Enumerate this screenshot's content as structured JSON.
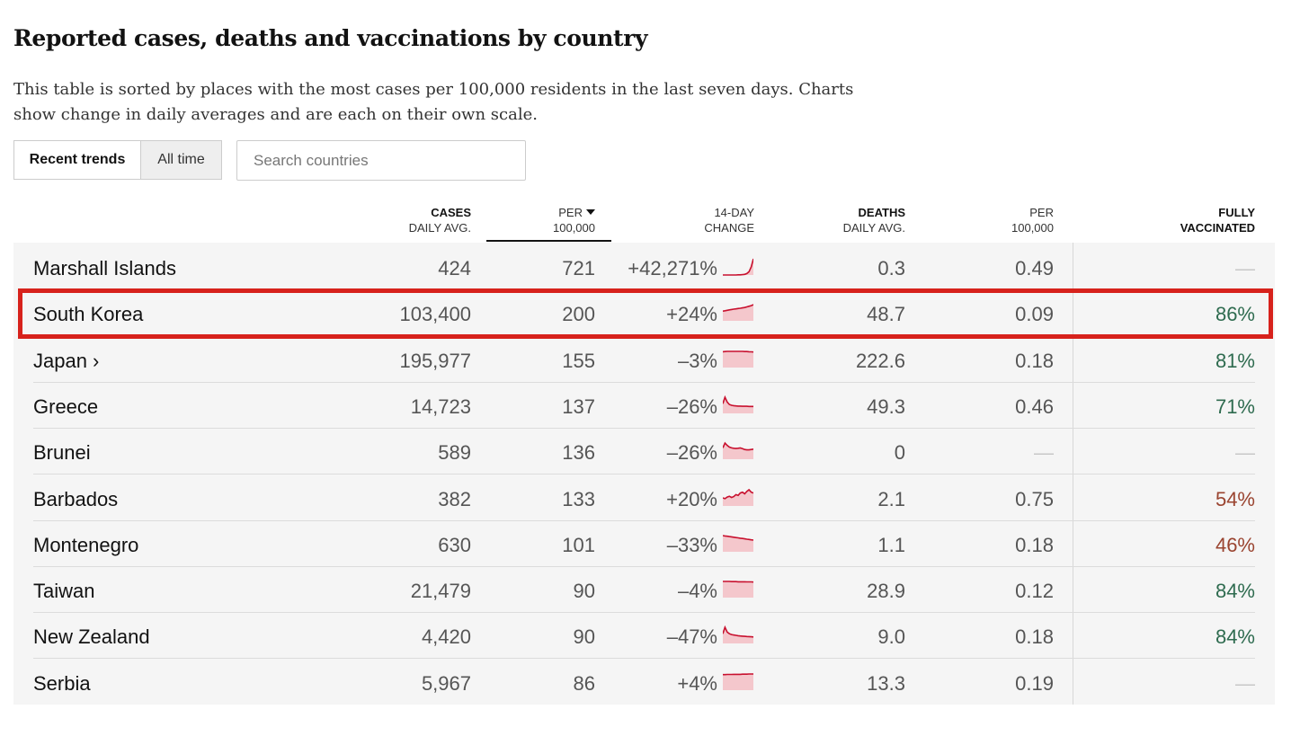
{
  "header": {
    "title": "Reported cases, deaths and vaccinations by country",
    "subtitle": "This table is sorted by places with the most cases per 100,000 residents in the last seven days. Charts show change in daily averages and are each on their own scale."
  },
  "tabs": {
    "recent_label": "Recent trends",
    "alltime_label": "All time"
  },
  "search": {
    "placeholder": "Search countries"
  },
  "columns": {
    "cases": [
      "CASES",
      "DAILY AVG."
    ],
    "per": [
      "PER",
      "100,000"
    ],
    "change": [
      "14-DAY",
      "CHANGE"
    ],
    "deaths": [
      "DEATHS",
      "DAILY AVG."
    ],
    "deaths_per": [
      "PER",
      "100,000"
    ],
    "vacc": [
      "FULLY",
      "VACCINATED"
    ]
  },
  "colors": {
    "spark_line": "#c8102e",
    "spark_fill": "#f4c7cc",
    "vacc_high": "#2e6b4f",
    "vacc_low": "#9a4430",
    "highlight": "#d7221c"
  },
  "rows": [
    {
      "country": "Marshall Islands",
      "cases": "424",
      "per100k": "721",
      "change": "+42,271%",
      "deaths": "0.3",
      "deaths_per100k": "0.49",
      "vaccinated": "—",
      "trend": [
        0,
        0,
        0,
        0,
        0,
        0,
        0,
        1,
        1,
        2,
        4,
        9,
        20,
        50,
        100
      ]
    },
    {
      "country": "South Korea",
      "cases": "103,400",
      "per100k": "200",
      "change": "+24%",
      "deaths": "48.7",
      "deaths_per100k": "0.09",
      "vaccinated": "86%",
      "trend": [
        60,
        62,
        65,
        68,
        70,
        72,
        74,
        76,
        78,
        80,
        82,
        86,
        90,
        94,
        100
      ]
    },
    {
      "country": "Japan ›",
      "cases": "195,977",
      "per100k": "155",
      "change": "–3%",
      "deaths": "222.6",
      "deaths_per100k": "0.18",
      "vaccinated": "81%",
      "trend": [
        98,
        99,
        100,
        100,
        100,
        100,
        100,
        100,
        100,
        100,
        99,
        99,
        98,
        97,
        96
      ]
    },
    {
      "country": "Greece",
      "cases": "14,723",
      "per100k": "137",
      "change": "–26%",
      "deaths": "49.3",
      "deaths_per100k": "0.46",
      "vaccinated": "71%",
      "trend": [
        60,
        100,
        70,
        55,
        50,
        48,
        46,
        45,
        45,
        44,
        44,
        44,
        43,
        43,
        43
      ]
    },
    {
      "country": "Brunei",
      "cases": "589",
      "per100k": "136",
      "change": "–26%",
      "deaths": "0",
      "deaths_per100k": "—",
      "vaccinated": "—",
      "trend": [
        70,
        100,
        85,
        75,
        70,
        68,
        66,
        68,
        70,
        65,
        60,
        58,
        58,
        60,
        62
      ]
    },
    {
      "country": "Barbados",
      "cases": "382",
      "per100k": "133",
      "change": "+20%",
      "deaths": "2.1",
      "deaths_per100k": "0.75",
      "vaccinated": "54%",
      "trend": [
        50,
        45,
        55,
        60,
        52,
        58,
        70,
        65,
        80,
        85,
        75,
        90,
        100,
        85,
        80
      ]
    },
    {
      "country": "Montenegro",
      "cases": "630",
      "per100k": "101",
      "change": "–33%",
      "deaths": "1.1",
      "deaths_per100k": "0.18",
      "vaccinated": "46%",
      "trend": [
        100,
        98,
        96,
        94,
        92,
        90,
        88,
        86,
        84,
        82,
        80,
        78,
        76,
        74,
        72
      ]
    },
    {
      "country": "Taiwan",
      "cases": "21,479",
      "per100k": "90",
      "change": "–4%",
      "deaths": "28.9",
      "deaths_per100k": "0.12",
      "vaccinated": "84%",
      "trend": [
        100,
        100,
        100,
        100,
        99,
        99,
        99,
        98,
        98,
        98,
        98,
        97,
        97,
        97,
        96
      ]
    },
    {
      "country": "New Zealand",
      "cases": "4,420",
      "per100k": "90",
      "change": "–47%",
      "deaths": "9.0",
      "deaths_per100k": "0.18",
      "vaccinated": "84%",
      "trend": [
        60,
        100,
        70,
        60,
        55,
        52,
        50,
        48,
        46,
        45,
        44,
        43,
        42,
        41,
        40
      ]
    },
    {
      "country": "Serbia",
      "cases": "5,967",
      "per100k": "86",
      "change": "+4%",
      "deaths": "13.3",
      "deaths_per100k": "0.19",
      "vaccinated": "—",
      "trend": [
        96,
        96,
        97,
        97,
        97,
        98,
        98,
        98,
        98,
        99,
        99,
        99,
        100,
        100,
        100
      ]
    }
  ]
}
